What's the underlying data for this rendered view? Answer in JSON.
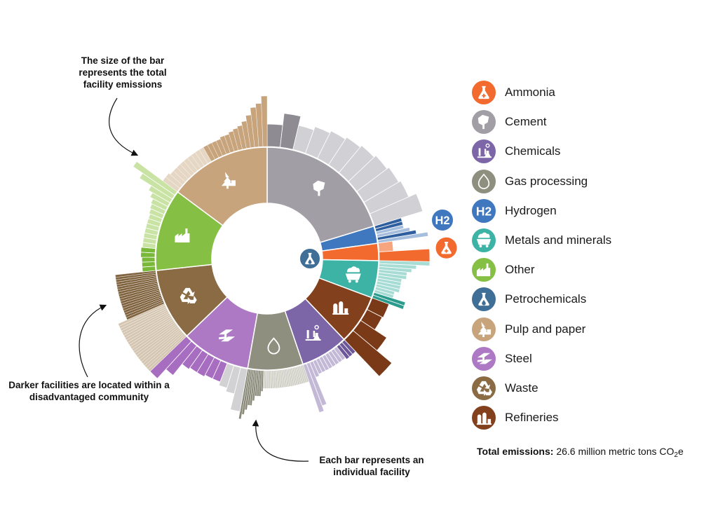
{
  "annotations": {
    "size": "The size of the bar represents the total facility emissions",
    "dark": "Darker facilities are located within a disadvantaged community",
    "bar": "Each bar represents an individual facility"
  },
  "legend": [
    {
      "name": "Ammonia",
      "color": "#F26A2E",
      "icon": "flask-plus-icon"
    },
    {
      "name": "Cement",
      "color": "#A19FA5",
      "icon": "cement-bag-icon"
    },
    {
      "name": "Chemicals",
      "color": "#7D66A8",
      "icon": "chemistry-icon"
    },
    {
      "name": "Gas processing",
      "color": "#8F8F80",
      "icon": "flame-icon"
    },
    {
      "name": "Hydrogen",
      "color": "#3F78BF",
      "icon": "h2-icon"
    },
    {
      "name": "Metals and minerals",
      "color": "#3DB3A5",
      "icon": "ore-cart-icon"
    },
    {
      "name": "Other",
      "color": "#85C044",
      "icon": "factory-icon"
    },
    {
      "name": "Petrochemicals",
      "color": "#3F6E96",
      "icon": "flask-drop-icon"
    },
    {
      "name": "Pulp and paper",
      "color": "#C7A47C",
      "icon": "tree-icon"
    },
    {
      "name": "Steel",
      "color": "#AE79C4",
      "icon": "steel-beam-icon"
    },
    {
      "name": "Waste",
      "color": "#8A6B44",
      "icon": "recycle-icon"
    },
    {
      "name": "Refineries",
      "color": "#83401D",
      "icon": "refinery-icon"
    }
  ],
  "total": {
    "label": "Total emissions:",
    "value": "26.6 million metric tons CO",
    "sub": "2",
    "suffix": "e"
  },
  "chart_data": {
    "type": "sunburst",
    "units": "share of total emissions (%)",
    "start_angle_deg": 0,
    "direction": "clockwise",
    "inner_ring": [
      {
        "sector": "Cement",
        "value": 20.3,
        "color": "#A19FA5",
        "light": "#D1D0D4",
        "dark": "#8E8C92",
        "icon": "cement-bag-icon"
      },
      {
        "sector": "Hydrogen",
        "value": 2.5,
        "color": "#3F78BF",
        "light": "#A6BEDD",
        "dark": "#2F5F9E",
        "icon": "h2-icon"
      },
      {
        "sector": "Ammonia",
        "value": 2.5,
        "color": "#F26A2E",
        "light": "#F6A57E",
        "dark": "#F26A2E",
        "icon": "flask-plus-icon"
      },
      {
        "sector": "Metals and minerals",
        "value": 5.4,
        "color": "#3DB3A5",
        "light": "#A7DCD5",
        "dark": "#2A9B8D",
        "icon": "ore-cart-icon"
      },
      {
        "sector": "Refineries",
        "value": 7.2,
        "color": "#83401D",
        "light": "#C29072",
        "dark": "#7A3A18",
        "icon": "refinery-icon"
      },
      {
        "sector": "Chemicals",
        "value": 6.9,
        "color": "#7D66A8",
        "light": "#C3B8D6",
        "dark": "#6D5798",
        "icon": "chemistry-icon"
      },
      {
        "sector": "Gas processing",
        "value": 8.0,
        "color": "#8F8F80",
        "light": "#CFCFC6",
        "dark": "#8A8A7A",
        "icon": "flame-icon"
      },
      {
        "sector": "Steel",
        "value": 10.0,
        "color": "#AE79C4",
        "light": "#D2D2D4",
        "dark": "#A76DC0",
        "icon": "steel-beam-icon"
      },
      {
        "sector": "Waste",
        "value": 10.5,
        "color": "#8A6B44",
        "light": "#D4C6B1",
        "dark": "#80633F",
        "icon": "recycle-icon"
      },
      {
        "sector": "Other",
        "value": 11.9,
        "color": "#85C044",
        "light": "#C9E3A4",
        "dark": "#7AB83A",
        "icon": "factory-icon"
      },
      {
        "sector": "Pulp and paper",
        "value": 14.8,
        "color": "#C7A47C",
        "light": "#E6D6C4",
        "dark": "#C7A47C",
        "icon": "tree-icon"
      }
    ],
    "outer_ring": [
      {
        "sector": "Cement",
        "facilities": [
          [
            1.0,
            1
          ],
          [
            2.0,
            1
          ],
          [
            1.2,
            0
          ],
          [
            1.5,
            0
          ],
          [
            1.7,
            0
          ],
          [
            1.9,
            0
          ],
          [
            2.1,
            0
          ],
          [
            2.3,
            0
          ],
          [
            2.5,
            0
          ],
          [
            2.7,
            0
          ],
          [
            3.4,
            0
          ]
        ]
      },
      {
        "sector": "Hydrogen",
        "facilities": [
          [
            0.3,
            1
          ],
          [
            0.3,
            1
          ],
          [
            0.3,
            0
          ],
          [
            0.4,
            0
          ],
          [
            0.5,
            1
          ],
          [
            0.7,
            0
          ]
        ]
      },
      {
        "sector": "Ammonia",
        "facilities": [
          [
            0.2,
            0
          ],
          [
            2.3,
            1
          ]
        ]
      },
      {
        "sector": "Metals and minerals",
        "facilities": [
          [
            0.9,
            0
          ],
          [
            0.6,
            0
          ],
          [
            0.5,
            0
          ],
          [
            0.4,
            0
          ],
          [
            0.4,
            0
          ],
          [
            0.3,
            0
          ],
          [
            0.3,
            0
          ],
          [
            0.3,
            0
          ],
          [
            0.3,
            0
          ],
          [
            0.2,
            0
          ],
          [
            0.2,
            0
          ],
          [
            0.5,
            1
          ],
          [
            0.5,
            1
          ]
        ]
      },
      {
        "sector": "Refineries",
        "facilities": [
          [
            0.7,
            1
          ],
          [
            0.6,
            1
          ],
          [
            2.0,
            1
          ],
          [
            3.9,
            1
          ]
        ]
      },
      {
        "sector": "Chemicals",
        "facilities": [
          [
            0.3,
            1
          ],
          [
            0.3,
            1
          ],
          [
            0.3,
            1
          ],
          [
            0.2,
            0
          ],
          [
            0.2,
            0
          ],
          [
            0.2,
            0
          ],
          [
            0.2,
            0
          ],
          [
            0.2,
            0
          ],
          [
            0.2,
            0
          ],
          [
            0.2,
            0
          ],
          [
            0.2,
            0
          ],
          [
            0.3,
            0
          ],
          [
            1.9,
            0
          ],
          [
            2.2,
            0
          ]
        ]
      },
      {
        "sector": "Gas processing",
        "facilities": [
          [
            0.14,
            0
          ],
          [
            0.14,
            0
          ],
          [
            0.14,
            0
          ],
          [
            0.14,
            0
          ],
          [
            0.14,
            0
          ],
          [
            0.14,
            0
          ],
          [
            0.14,
            0
          ],
          [
            0.14,
            0
          ],
          [
            0.14,
            0
          ],
          [
            0.14,
            0
          ],
          [
            0.14,
            0
          ],
          [
            0.14,
            0
          ],
          [
            0.14,
            0
          ],
          [
            0.14,
            0
          ],
          [
            0.14,
            0
          ],
          [
            0.14,
            0
          ],
          [
            0.14,
            0
          ],
          [
            0.14,
            0
          ],
          [
            0.14,
            0
          ],
          [
            0.14,
            0
          ],
          [
            0.14,
            0
          ],
          [
            0.14,
            0
          ],
          [
            0.14,
            0
          ],
          [
            0.14,
            0
          ],
          [
            0.14,
            0
          ],
          [
            0.2,
            1
          ],
          [
            0.3,
            1
          ],
          [
            0.3,
            1
          ],
          [
            0.3,
            1
          ],
          [
            0.4,
            1
          ],
          [
            0.5,
            1
          ],
          [
            0.5,
            1
          ],
          [
            0.6,
            1
          ],
          [
            0.7,
            1
          ],
          [
            0.8,
            1
          ]
        ]
      },
      {
        "sector": "Steel",
        "facilities": [
          [
            1.8,
            0
          ],
          [
            0.9,
            0
          ],
          [
            0.7,
            0
          ],
          [
            0.5,
            1
          ],
          [
            0.5,
            1
          ],
          [
            0.6,
            1
          ],
          [
            0.6,
            1
          ],
          [
            0.7,
            1
          ],
          [
            1.5,
            1
          ],
          [
            2.2,
            1
          ]
        ]
      },
      {
        "sector": "Waste",
        "facilities": [
          [
            0.2,
            0
          ],
          [
            0.2,
            0
          ],
          [
            0.2,
            0
          ],
          [
            0.2,
            0
          ],
          [
            0.2,
            0
          ],
          [
            0.2,
            0
          ],
          [
            0.2,
            0
          ],
          [
            0.2,
            0
          ],
          [
            0.2,
            0
          ],
          [
            0.2,
            0
          ],
          [
            0.2,
            0
          ],
          [
            0.2,
            0
          ],
          [
            0.2,
            0
          ],
          [
            0.2,
            0
          ],
          [
            0.2,
            0
          ],
          [
            0.2,
            0
          ],
          [
            0.2,
            0
          ],
          [
            0.2,
            0
          ],
          [
            0.2,
            0
          ],
          [
            0.2,
            0
          ],
          [
            0.2,
            0
          ],
          [
            0.2,
            0
          ],
          [
            0.15,
            1
          ],
          [
            0.15,
            1
          ],
          [
            0.15,
            1
          ],
          [
            0.15,
            1
          ],
          [
            0.15,
            1
          ],
          [
            0.15,
            1
          ],
          [
            0.15,
            1
          ],
          [
            0.15,
            1
          ],
          [
            0.15,
            1
          ],
          [
            0.15,
            1
          ],
          [
            0.15,
            1
          ],
          [
            0.15,
            1
          ],
          [
            0.15,
            1
          ],
          [
            0.15,
            1
          ],
          [
            0.15,
            1
          ],
          [
            0.15,
            1
          ],
          [
            0.15,
            1
          ],
          [
            0.15,
            1
          ],
          [
            0.15,
            1
          ]
        ]
      },
      {
        "sector": "Other",
        "facilities": [
          [
            0.2,
            1
          ],
          [
            0.2,
            1
          ],
          [
            0.2,
            1
          ],
          [
            0.3,
            1
          ],
          [
            0.3,
            1
          ],
          [
            0.2,
            0
          ],
          [
            0.2,
            0
          ],
          [
            0.2,
            0
          ],
          [
            0.2,
            0
          ],
          [
            0.2,
            0
          ],
          [
            0.2,
            0
          ],
          [
            0.2,
            0
          ],
          [
            0.3,
            0
          ],
          [
            0.4,
            0
          ],
          [
            0.5,
            0
          ],
          [
            0.8,
            0
          ],
          [
            1.2,
            0
          ],
          [
            2.4,
            0
          ],
          [
            3.4,
            0
          ]
        ]
      },
      {
        "sector": "Pulp and paper",
        "facilities": [
          [
            0.4,
            0
          ],
          [
            0.4,
            0
          ],
          [
            0.3,
            0
          ],
          [
            0.3,
            0
          ],
          [
            0.3,
            0
          ],
          [
            0.3,
            0
          ],
          [
            0.3,
            0
          ],
          [
            0.3,
            0
          ],
          [
            0.3,
            0
          ],
          [
            0.3,
            0
          ],
          [
            0.3,
            0
          ],
          [
            0.3,
            1
          ],
          [
            0.3,
            1
          ],
          [
            0.3,
            1
          ],
          [
            0.3,
            1
          ],
          [
            0.4,
            1
          ],
          [
            0.4,
            1
          ],
          [
            0.5,
            1
          ],
          [
            0.6,
            1
          ],
          [
            0.7,
            1
          ],
          [
            0.9,
            1
          ],
          [
            1.2,
            1
          ],
          [
            1.6,
            1
          ],
          [
            1.8,
            1
          ],
          [
            2.2,
            1
          ]
        ]
      }
    ]
  }
}
